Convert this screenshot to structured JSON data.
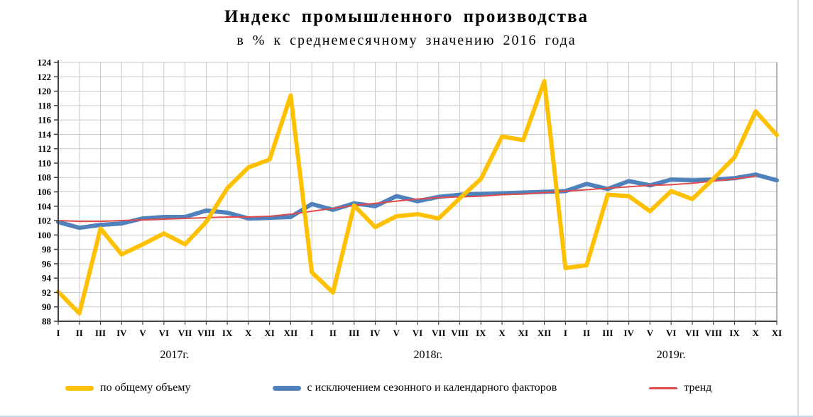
{
  "header": {
    "title": "Индекс промышленного производства",
    "subtitle": "в % к среднемесячному значению 2016 года"
  },
  "chart_data": {
    "type": "line",
    "title": "Индекс промышленного производства",
    "subtitle": "в % к среднемесячному значению 2016 года",
    "xlabel": "",
    "ylabel": "",
    "ylim": [
      88,
      124
    ],
    "ytick_step": 2,
    "grid": true,
    "legend_position": "bottom",
    "x_months": [
      "I",
      "II",
      "III",
      "IV",
      "V",
      "VI",
      "VII",
      "VIII",
      "IX",
      "X",
      "XI",
      "XII",
      "I",
      "II",
      "III",
      "IV",
      "V",
      "VI",
      "VII",
      "VIII",
      "IX",
      "X",
      "XI",
      "XII",
      "I",
      "II",
      "III",
      "IV",
      "V",
      "VI",
      "VII",
      "VIII",
      "IX",
      "X",
      "XI"
    ],
    "year_groups": [
      {
        "label": "2017г.",
        "count": 12
      },
      {
        "label": "2018г.",
        "count": 12
      },
      {
        "label": "2019г.",
        "count": 11
      }
    ],
    "series": [
      {
        "name": "по общему объему",
        "color": "#FFC000",
        "width": 6,
        "values": [
          92.1,
          89.1,
          100.9,
          97.3,
          98.7,
          100.2,
          98.7,
          101.8,
          106.5,
          109.4,
          110.5,
          119.4,
          94.8,
          92.0,
          104.1,
          101.1,
          102.6,
          102.9,
          102.3,
          105.1,
          107.8,
          113.7,
          113.2,
          121.4,
          95.4,
          95.8,
          105.6,
          105.4,
          103.3,
          106.1,
          105.0,
          107.8,
          110.8,
          117.2,
          113.9
        ]
      },
      {
        "name": "с исключением сезонного и календарного факторов",
        "color": "#4F81BD",
        "width": 6,
        "values": [
          101.8,
          101.0,
          101.4,
          101.6,
          102.3,
          102.5,
          102.5,
          103.4,
          103.1,
          102.3,
          102.4,
          102.5,
          104.3,
          103.5,
          104.4,
          104.0,
          105.4,
          104.7,
          105.3,
          105.6,
          105.7,
          105.8,
          105.9,
          106.0,
          106.1,
          107.1,
          106.4,
          107.5,
          106.9,
          107.7,
          107.6,
          107.7,
          107.9,
          108.4,
          107.6
        ]
      },
      {
        "name": "тренд",
        "color": "#E04B4B",
        "width": 2,
        "values": [
          102.0,
          101.9,
          101.9,
          102.0,
          102.1,
          102.2,
          102.3,
          102.4,
          102.5,
          102.5,
          102.6,
          102.9,
          103.3,
          103.7,
          104.1,
          104.4,
          104.7,
          105.0,
          105.2,
          105.3,
          105.4,
          105.6,
          105.7,
          105.9,
          106.1,
          106.3,
          106.5,
          106.7,
          106.9,
          107.0,
          107.2,
          107.5,
          107.8,
          108.2,
          null
        ]
      }
    ]
  }
}
